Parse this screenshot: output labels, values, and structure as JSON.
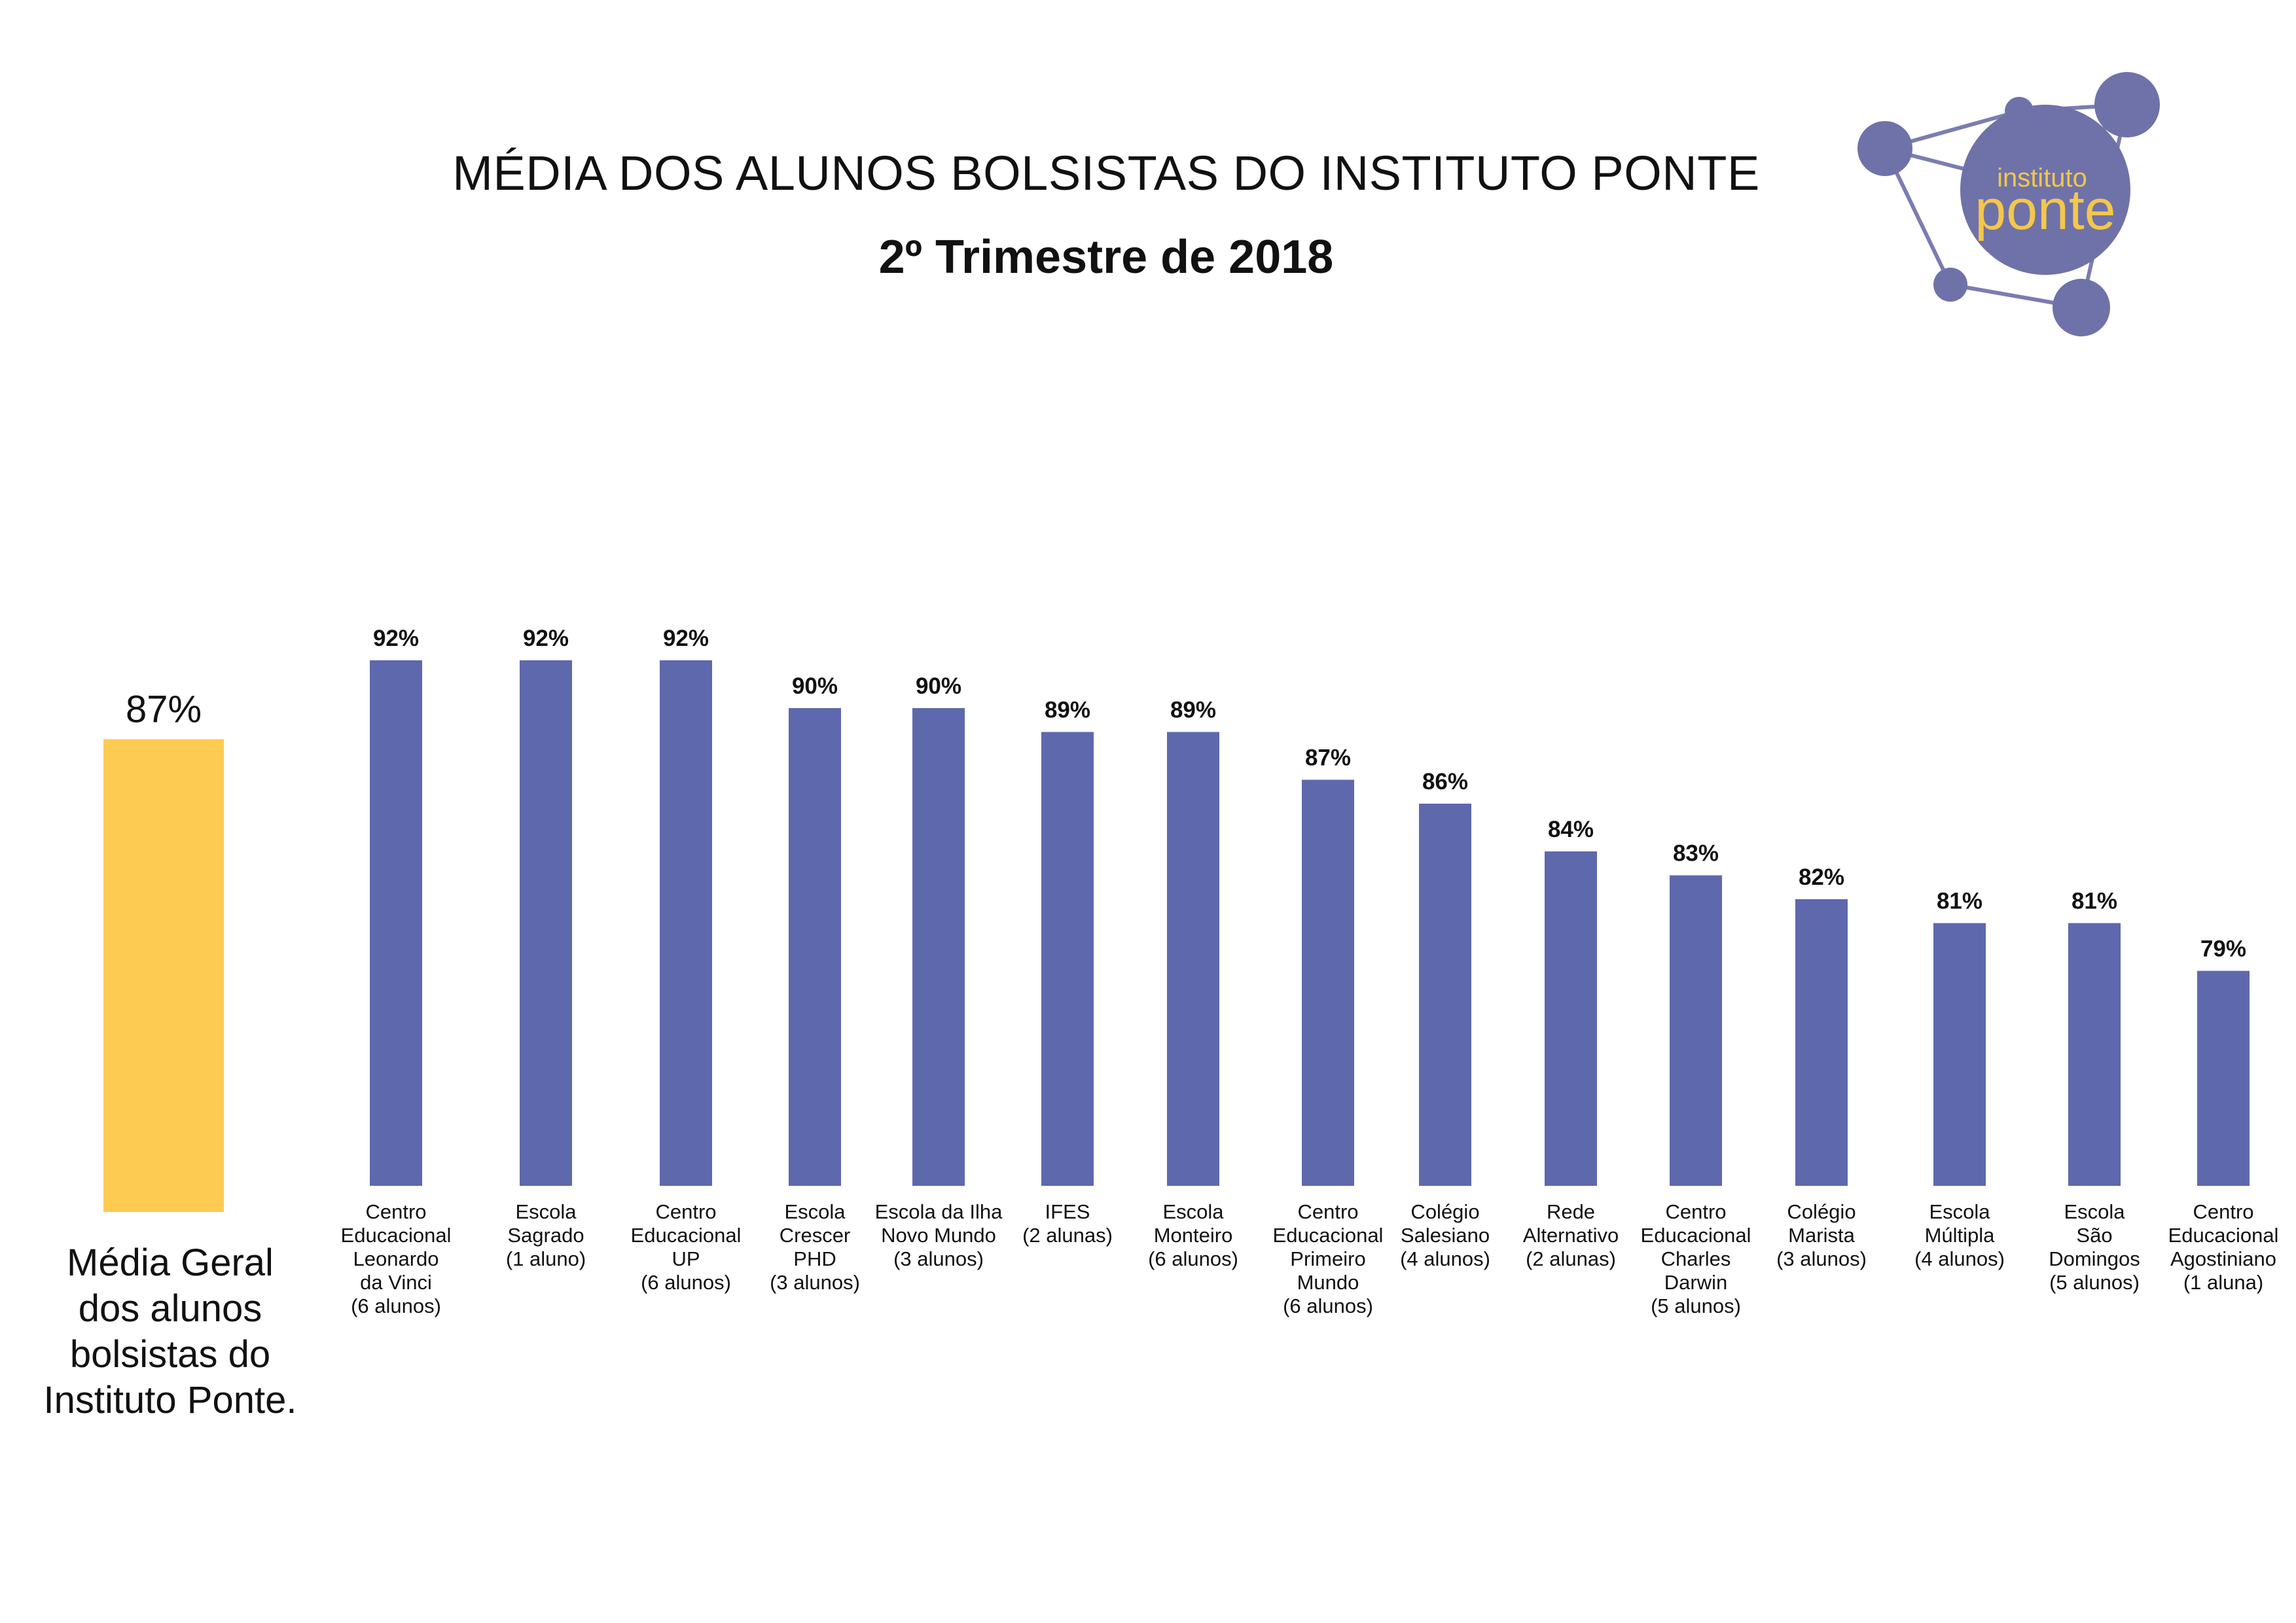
{
  "header": {
    "title": "MÉDIA DOS ALUNOS BOLSISTAS DO INSTITUTO PONTE",
    "subtitle": "2º Trimestre de 2018"
  },
  "logo": {
    "text_top": "instituto",
    "text_main": "ponte",
    "color_circle": "#6f72a8",
    "color_text": "#f5c74a"
  },
  "average": {
    "value": 87,
    "label": "87%",
    "caption_lines": [
      "Média Geral",
      "dos alunos",
      "bolsistas do",
      "Instituto Ponte."
    ],
    "color": "#fdca52"
  },
  "chart_data": {
    "type": "bar",
    "bar_color": "#5e68ad",
    "categories": [
      [
        "Centro",
        "Educacional",
        "Leonardo",
        "da Vinci",
        "(6 alunos)"
      ],
      [
        "Escola",
        "Sagrado",
        "(1 aluno)"
      ],
      [
        "Centro",
        "Educacional",
        "UP",
        "(6 alunos)"
      ],
      [
        "Escola",
        "Crescer",
        "PHD",
        "(3 alunos)"
      ],
      [
        "Escola da Ilha",
        "Novo Mundo",
        "(3 alunos)"
      ],
      [
        "IFES",
        "(2 alunas)"
      ],
      [
        "Escola",
        "Monteiro",
        "(6 alunos)"
      ],
      [
        "Centro",
        "Educacional",
        "Primeiro",
        "Mundo",
        "(6 alunos)"
      ],
      [
        "Colégio",
        "Salesiano",
        "(4 alunos)"
      ],
      [
        "Rede",
        "Alternativo",
        "(2 alunas)"
      ],
      [
        "Centro",
        "Educacional",
        "Charles",
        "Darwin",
        "(5 alunos)"
      ],
      [
        "Colégio",
        "Marista",
        "(3 alunos)"
      ],
      [
        "Escola",
        "Múltipla",
        "(4 alunos)"
      ],
      [
        "Escola",
        "São",
        "Domingos",
        "(5 alunos)"
      ],
      [
        "Centro",
        "Educacional",
        "Agostiniano",
        "(1 aluna)"
      ]
    ],
    "values": [
      92,
      92,
      92,
      90,
      90,
      89,
      89,
      87,
      86,
      84,
      83,
      82,
      81,
      81,
      79
    ],
    "labels": [
      "92%",
      "92%",
      "92%",
      "90%",
      "90%",
      "89%",
      "89%",
      "87%",
      "86%",
      "84%",
      "83%",
      "82%",
      "81%",
      "81%",
      "79%"
    ]
  }
}
